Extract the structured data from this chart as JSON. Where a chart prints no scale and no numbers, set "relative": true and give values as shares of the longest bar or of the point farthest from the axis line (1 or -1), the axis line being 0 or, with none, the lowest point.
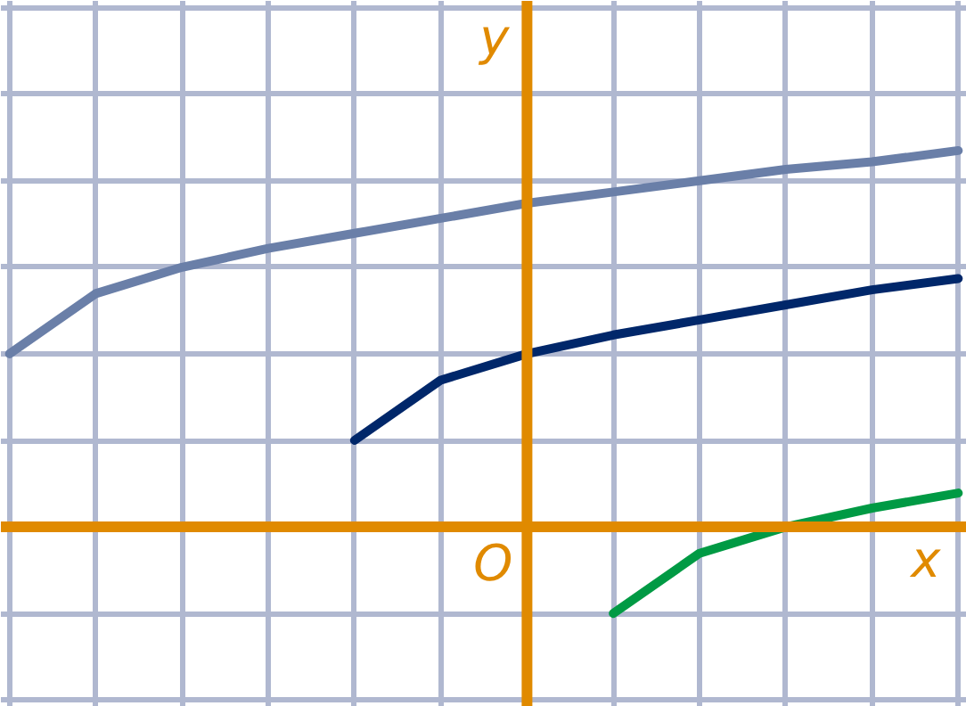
{
  "chart_data": {
    "type": "line",
    "xlabel": "x",
    "ylabel": "y",
    "annotations": [
      "O"
    ],
    "relative": true,
    "categories": [
      null,
      null,
      null,
      null,
      null,
      null,
      null,
      null,
      null,
      null,
      null,
      null
    ],
    "ref_lines": [
      {
        "axis": "y",
        "value": 0,
        "color": "#e08a00"
      }
    ],
    "grid": true,
    "tick_labels": false,
    "marker": "none",
    "line_style": "solid",
    "series": [
      {
        "color": "#6a7fa8",
        "values": [
          0.46,
          0.62,
          0.69,
          0.74,
          0.78,
          0.82,
          0.86,
          0.89,
          0.92,
          0.95,
          0.97,
          1
        ]
      },
      {
        "color": "#00276a",
        "values": [
          null,
          null,
          null,
          null,
          0.23,
          0.39,
          0.46,
          0.51,
          0.55,
          0.59,
          0.63,
          0.66
        ]
      },
      {
        "color": "#009a44",
        "values": [
          null,
          null,
          null,
          null,
          null,
          null,
          null,
          -0.23,
          -0.07,
          0,
          0.05,
          0.09
        ]
      }
    ]
  }
}
